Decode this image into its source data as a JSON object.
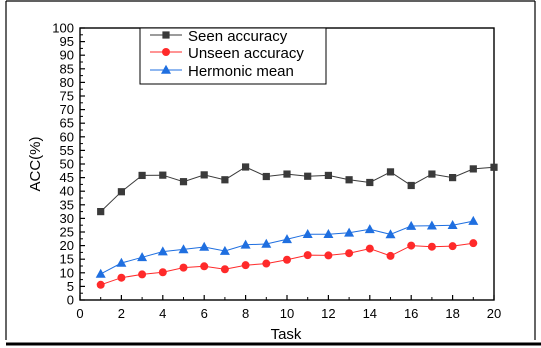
{
  "chart_data": {
    "type": "line",
    "title": "",
    "xlabel": "Task",
    "ylabel": "ACC(%)",
    "xlim": [
      0,
      20
    ],
    "ylim": [
      0,
      100
    ],
    "xticks": [
      "0",
      "2",
      "4",
      "6",
      "8",
      "10",
      "12",
      "14",
      "16",
      "18",
      "20"
    ],
    "yticks": [
      "0",
      "5",
      "10",
      "15",
      "20",
      "25",
      "30",
      "35",
      "40",
      "45",
      "50",
      "55",
      "60",
      "65",
      "70",
      "75",
      "80",
      "85",
      "90",
      "95",
      "100"
    ],
    "grid": false,
    "legend_position": "top-left",
    "series": [
      {
        "name": "Seen accuracy",
        "color": "#3a3a3a",
        "marker": "square",
        "x": [
          1,
          2,
          3,
          4,
          5,
          6,
          7,
          8,
          9,
          10,
          11,
          12,
          13,
          14,
          15,
          16,
          17,
          18,
          19,
          20
        ],
        "values": [
          32.5,
          39.8,
          45.8,
          45.9,
          43.5,
          46.0,
          44.2,
          48.9,
          45.4,
          46.3,
          45.5,
          45.8,
          44.2,
          43.2,
          47.1,
          42.1,
          46.3,
          45.0,
          48.2,
          48.8
        ]
      },
      {
        "name": "Unseen accuracy",
        "color": "#ff2a2a",
        "marker": "circle",
        "x": [
          1,
          2,
          3,
          4,
          5,
          6,
          7,
          8,
          9,
          10,
          11,
          12,
          13,
          14,
          15,
          16,
          17,
          18,
          19
        ],
        "values": [
          5.6,
          8.2,
          9.4,
          10.2,
          11.9,
          12.4,
          11.3,
          12.8,
          13.4,
          14.8,
          16.5,
          16.4,
          17.2,
          18.9,
          16.2,
          20.0,
          19.6,
          19.8,
          20.9
        ]
      },
      {
        "name": "Hermonic mean",
        "color": "#1f6fe0",
        "marker": "triangle",
        "x": [
          1,
          2,
          3,
          4,
          5,
          6,
          7,
          8,
          9,
          10,
          11,
          12,
          13,
          14,
          15,
          16,
          17,
          18,
          19
        ],
        "values": [
          9.6,
          13.6,
          15.7,
          17.8,
          18.6,
          19.5,
          18.0,
          20.3,
          20.6,
          22.3,
          24.2,
          24.2,
          24.7,
          26.0,
          24.1,
          27.2,
          27.3,
          27.5,
          29.0
        ]
      }
    ]
  }
}
